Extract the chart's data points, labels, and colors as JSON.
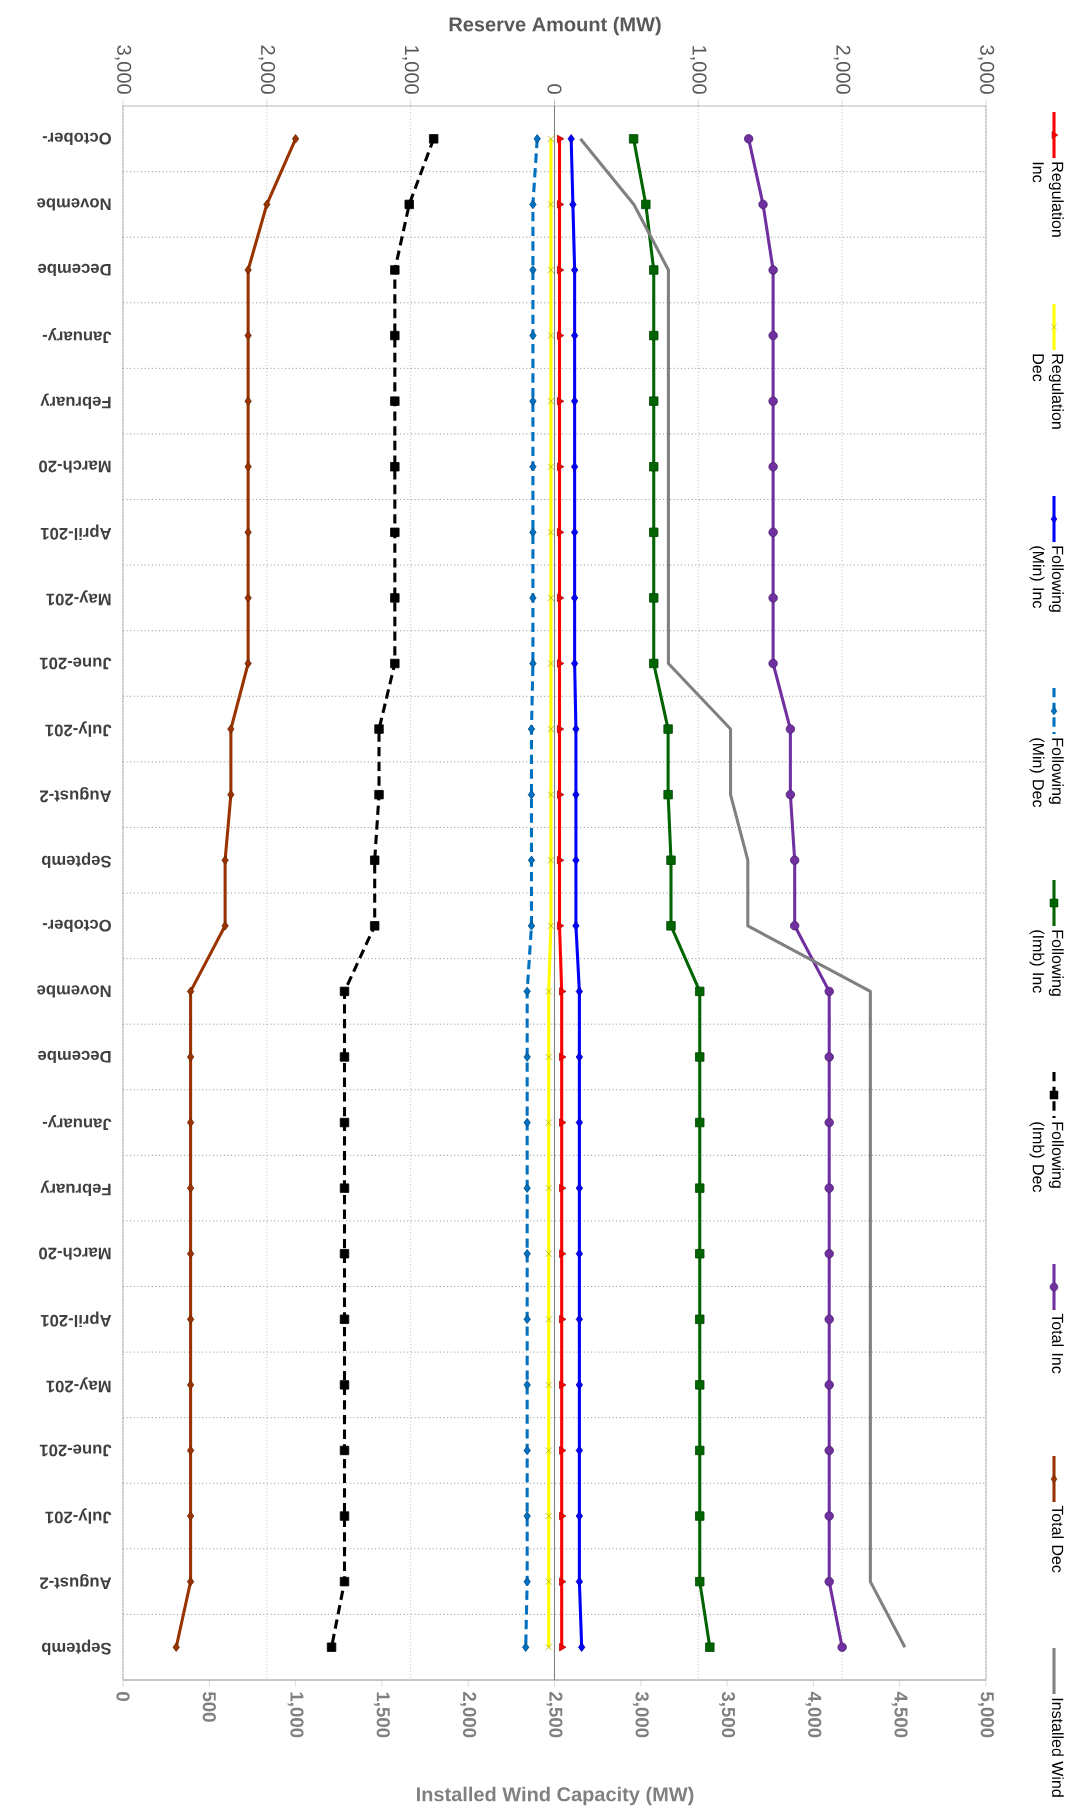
{
  "chart_data": {
    "type": "line",
    "orientation": "horizontal",
    "xlabel": "Installed Wind Capacity (MW)",
    "x2label": "Reserve Amount (MW)",
    "categories": [
      "October-",
      "Novembe",
      "Decembe",
      "January-",
      "February",
      "March-20",
      "April-201",
      "May-201",
      "June-201",
      "July-201",
      "August-2",
      "Septemb",
      "October-",
      "Novembe",
      "Decembe",
      "January-",
      "February",
      "March-20",
      "April-201",
      "May-201",
      "June-201",
      "July-201",
      "August-2",
      "Septemb"
    ],
    "x2lim": [
      -3000,
      3000
    ],
    "x2ticks": [
      {
        "value": -3000,
        "label": "3,000"
      },
      {
        "value": -2000,
        "label": "2,000"
      },
      {
        "value": -1000,
        "label": "1,000"
      },
      0,
      {
        "value": 1000,
        "label": "1,000"
      },
      {
        "value": 2000,
        "label": "2,000"
      },
      {
        "value": 3000,
        "label": "3,000"
      }
    ],
    "xlim": [
      0,
      5000
    ],
    "xticks": [
      0,
      500,
      {
        "value": 1000,
        "label": "1,000"
      },
      {
        "value": 1500,
        "label": "1,500"
      },
      {
        "value": 2000,
        "label": "2,000"
      },
      {
        "value": 2500,
        "label": "2,500"
      },
      {
        "value": 3000,
        "label": "3,000"
      },
      {
        "value": 3500,
        "label": "3,500"
      },
      {
        "value": 4000,
        "label": "4,000"
      },
      {
        "value": 4500,
        "label": "4,500"
      },
      {
        "value": 5000,
        "label": "5,000"
      }
    ],
    "grid": true,
    "legend": "right",
    "series": [
      {
        "name": "Regulation Inc",
        "color": "#ff0000",
        "axis": "x2",
        "marker": "triangle",
        "line_style": "solid",
        "values": [
          35,
          35,
          35,
          35,
          35,
          35,
          35,
          35,
          35,
          35,
          35,
          35,
          35,
          50,
          50,
          50,
          50,
          50,
          50,
          50,
          50,
          50,
          50,
          50
        ]
      },
      {
        "name": "Regulation Dec",
        "color": "#ffff00",
        "axis": "x2",
        "marker": "cross",
        "line_style": "solid",
        "values": [
          -25,
          -25,
          -25,
          -25,
          -25,
          -25,
          -25,
          -25,
          -25,
          -25,
          -25,
          -25,
          -25,
          -40,
          -40,
          -40,
          -40,
          -40,
          -40,
          -40,
          -40,
          -40,
          -40,
          -40
        ]
      },
      {
        "name": "Following (Min) Inc",
        "color": "#0000ff",
        "axis": "x2",
        "marker": "diamond",
        "line_style": "solid",
        "values": [
          116,
          128,
          140,
          140,
          140,
          140,
          140,
          140,
          140,
          149,
          149,
          149,
          149,
          173,
          173,
          173,
          173,
          173,
          173,
          173,
          173,
          173,
          173,
          189
        ]
      },
      {
        "name": "Following (Min) Dec",
        "color": "#0070c0",
        "axis": "x2",
        "marker": "diamond",
        "line_style": "dashed",
        "values": [
          -120,
          -150,
          -150,
          -150,
          -150,
          -150,
          -150,
          -150,
          -150,
          -160,
          -160,
          -160,
          -160,
          -190,
          -190,
          -190,
          -190,
          -190,
          -190,
          -190,
          -190,
          -190,
          -190,
          -200
        ]
      },
      {
        "name": "Following (Imb) Inc",
        "color": "#006400",
        "axis": "x2",
        "marker": "square",
        "line_style": "solid",
        "values": [
          550,
          635,
          690,
          690,
          690,
          690,
          690,
          690,
          690,
          790,
          790,
          810,
          810,
          1010,
          1010,
          1010,
          1010,
          1010,
          1010,
          1010,
          1010,
          1010,
          1010,
          1080
        ]
      },
      {
        "name": "Following (Imb) Dec",
        "color": "#000000",
        "axis": "x2",
        "marker": "square",
        "line_style": "dashed",
        "values": [
          -840,
          -1010,
          -1110,
          -1110,
          -1110,
          -1110,
          -1110,
          -1110,
          -1110,
          -1220,
          -1220,
          -1250,
          -1250,
          -1460,
          -1460,
          -1460,
          -1460,
          -1460,
          -1460,
          -1460,
          -1460,
          -1460,
          -1460,
          -1550
        ]
      },
      {
        "name": "Total Inc",
        "color": "#7030a0",
        "axis": "x2",
        "marker": "circle",
        "line_style": "solid",
        "values": [
          1350,
          1450,
          1520,
          1520,
          1520,
          1520,
          1520,
          1520,
          1520,
          1640,
          1640,
          1670,
          1670,
          1910,
          1910,
          1910,
          1910,
          1910,
          1910,
          1910,
          1910,
          1910,
          1910,
          2000
        ]
      },
      {
        "name": "Total Dec",
        "color": "#993300",
        "axis": "x2",
        "marker": "diamond",
        "line_style": "solid",
        "values": [
          -1800,
          -2000,
          -2130,
          -2130,
          -2130,
          -2130,
          -2130,
          -2130,
          -2130,
          -2250,
          -2250,
          -2290,
          -2290,
          -2530,
          -2530,
          -2530,
          -2530,
          -2530,
          -2530,
          -2530,
          -2530,
          -2530,
          -2530,
          -2630
        ]
      },
      {
        "name": "Installed Wind",
        "color": "#808080",
        "marker": "none",
        "line_style": "solid",
        "values": [
          2650,
          2960,
          3160,
          3160,
          3160,
          3160,
          3160,
          3160,
          3160,
          3520,
          3520,
          3620,
          3620,
          4330,
          4330,
          4330,
          4330,
          4330,
          4330,
          4330,
          4330,
          4330,
          4330,
          4530
        ]
      }
    ]
  }
}
